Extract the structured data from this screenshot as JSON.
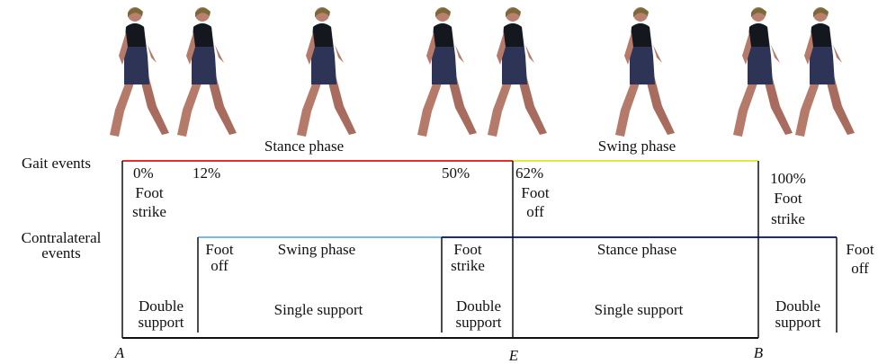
{
  "phases": {
    "stance": "Stance phase",
    "swing": "Swing phase"
  },
  "rows": {
    "gait": "Gait events",
    "contralateral": [
      "Contralateral",
      "events"
    ]
  },
  "gait_events": [
    {
      "percent": "0%",
      "label": [
        "Foot",
        "strike"
      ]
    },
    {
      "percent": "12%"
    },
    {
      "percent": "50%"
    },
    {
      "percent": "62%",
      "label": [
        "Foot",
        "off"
      ]
    },
    {
      "percent": "100%",
      "label": [
        "Foot",
        "strike"
      ]
    }
  ],
  "contralateral": {
    "foot_off_1": [
      "Foot",
      "off"
    ],
    "swing": "Swing phase",
    "foot_strike": [
      "Foot",
      "strike"
    ],
    "stance": "Stance phase",
    "foot_off_2": [
      "Foot",
      "off"
    ]
  },
  "support": [
    [
      "Double",
      "support"
    ],
    "Single support",
    [
      "Double",
      "support"
    ],
    "Single support",
    [
      "Double",
      "support"
    ]
  ],
  "axis": {
    "a": "A",
    "e": "E",
    "b": "B"
  }
}
